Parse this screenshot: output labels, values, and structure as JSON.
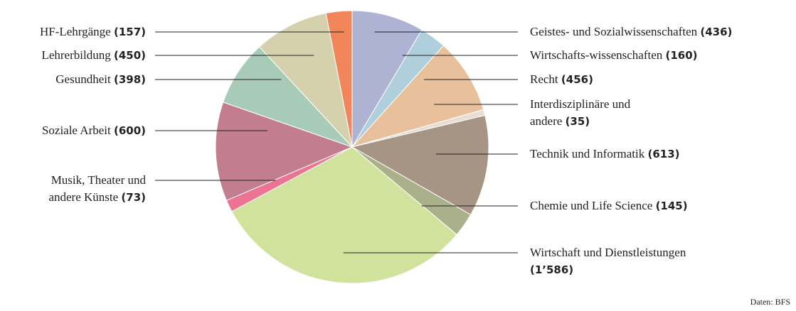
{
  "chart_data": {
    "type": "pie",
    "categories": [
      "Geistes- und Sozialwissenschaften",
      "Wirtschafts-wissenschaften",
      "Recht",
      "Interdisziplinäre und andere",
      "Technik und Informatik",
      "Chemie und Life Science",
      "Wirtschaft und Dienstleistungen",
      "Musik, Theater und andere Künste",
      "Soziale Arbeit",
      "Gesundheit",
      "Lehrerbildung",
      "HF-Lehrgänge"
    ],
    "values": [
      436,
      160,
      456,
      35,
      613,
      145,
      1586,
      73,
      600,
      398,
      450,
      157
    ],
    "value_labels": [
      "(436)",
      "(160)",
      "(456)",
      "(35)",
      "(613)",
      "(145)",
      "(1’586)",
      "(73)",
      "(600)",
      "(398)",
      "(450)",
      "(157)"
    ],
    "colors": [
      "#aeb3d3",
      "#afcfdc",
      "#e8c09c",
      "#e8ddd3",
      "#a69584",
      "#aab08a",
      "#d1e29c",
      "#ed7392",
      "#c27e8f",
      "#a8cbb7",
      "#d6d1ad",
      "#f2865a"
    ],
    "source": "Daten: BFS"
  }
}
